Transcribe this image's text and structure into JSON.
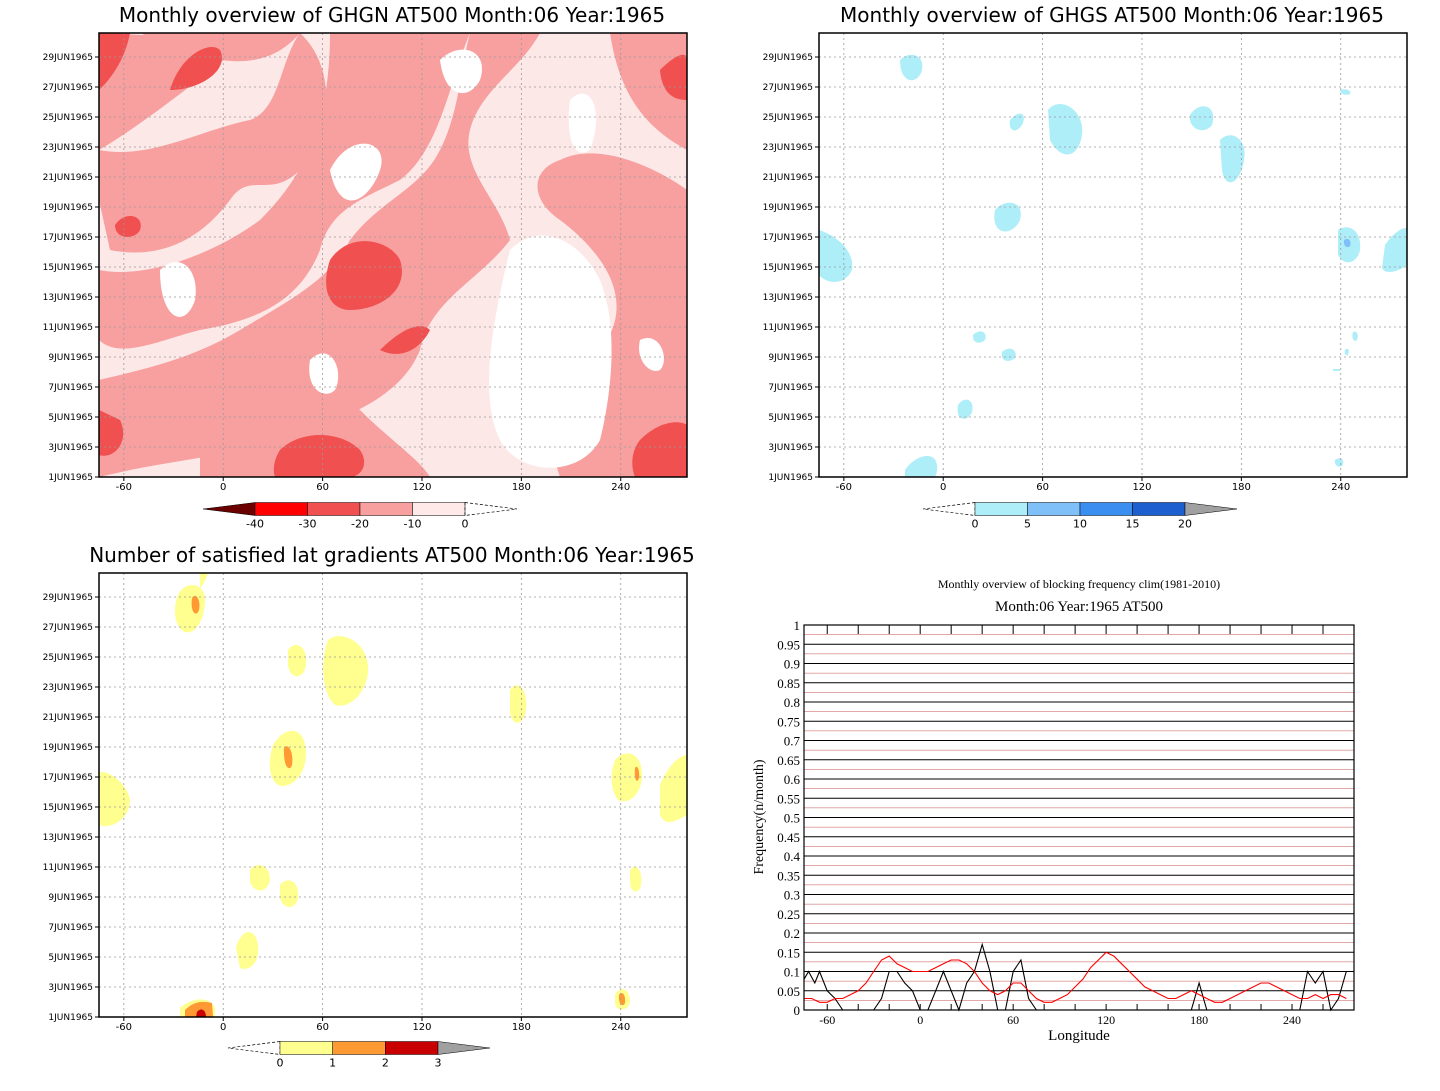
{
  "chart_data": [
    {
      "type": "heatmap",
      "title": "Monthly overview of GHGN AT500 Month:06 Year:1965",
      "x_ticks": [
        "-60",
        "0",
        "60",
        "120",
        "180",
        "240"
      ],
      "x_tick_values": [
        -60,
        0,
        60,
        120,
        180,
        240
      ],
      "xlim": [
        -75,
        280
      ],
      "y_ticks": [
        "1JUN1965",
        "3JUN1965",
        "5JUN1965",
        "7JUN1965",
        "9JUN1965",
        "11JUN1965",
        "13JUN1965",
        "15JUN1965",
        "17JUN1965",
        "19JUN1965",
        "21JUN1965",
        "23JUN1965",
        "25JUN1965",
        "27JUN1965",
        "29JUN1965"
      ],
      "colorbar": {
        "labels": [
          "-40",
          "-30",
          "-20",
          "-10",
          "0"
        ],
        "colors": [
          "#6b0000",
          "#ff0000",
          "#f05050",
          "#f8a0a0",
          "#ffe8e8"
        ]
      },
      "shading_colors": {
        "light": "#fde8e8",
        "mid": "#f8a0a0",
        "strong": "#f05050"
      }
    },
    {
      "type": "heatmap",
      "title": "Monthly overview of GHGS AT500 Month:06 Year:1965",
      "x_ticks": [
        "-60",
        "0",
        "60",
        "120",
        "180",
        "240"
      ],
      "x_tick_values": [
        -60,
        0,
        60,
        120,
        180,
        240
      ],
      "xlim": [
        -75,
        280
      ],
      "y_ticks": [
        "1JUN1965",
        "3JUN1965",
        "5JUN1965",
        "7JUN1965",
        "9JUN1965",
        "11JUN1965",
        "13JUN1965",
        "15JUN1965",
        "17JUN1965",
        "19JUN1965",
        "21JUN1965",
        "23JUN1965",
        "25JUN1965",
        "27JUN1965",
        "29JUN1965"
      ],
      "colorbar": {
        "labels": [
          "0",
          "5",
          "10",
          "15",
          "20"
        ],
        "colors": [
          "#aeeef8",
          "#80c0f8",
          "#3a8ef0",
          "#1e5fd0",
          "#a0a0a0"
        ]
      }
    },
    {
      "type": "heatmap",
      "title": "Number of satisfied lat gradients AT500 Month:06 Year:1965",
      "x_ticks": [
        "-60",
        "0",
        "60",
        "120",
        "180",
        "240"
      ],
      "x_tick_values": [
        -60,
        0,
        60,
        120,
        180,
        240
      ],
      "xlim": [
        -75,
        280
      ],
      "y_ticks": [
        "1JUN1965",
        "3JUN1965",
        "5JUN1965",
        "7JUN1965",
        "9JUN1965",
        "11JUN1965",
        "13JUN1965",
        "15JUN1965",
        "17JUN1965",
        "19JUN1965",
        "21JUN1965",
        "23JUN1965",
        "25JUN1965",
        "27JUN1965",
        "29JUN1965"
      ],
      "colorbar": {
        "labels": [
          "0",
          "1",
          "2",
          "3"
        ],
        "colors": [
          "#ffff90",
          "#ff9933",
          "#c80000",
          "#a0a0a0"
        ]
      }
    },
    {
      "type": "line",
      "title": "Monthly overview of blocking frequency clim(1981-2010)",
      "subtitle": "Month:06 Year:1965  AT500",
      "xlabel": "Longitude",
      "ylabel": "Frequency(n/month)",
      "xlim": [
        -75,
        280
      ],
      "ylim": [
        0,
        1
      ],
      "x_ticks": [
        "-60",
        "0",
        "60",
        "120",
        "180",
        "240"
      ],
      "x_tick_values": [
        -60,
        0,
        60,
        120,
        180,
        240
      ],
      "y_ticks": [
        "0",
        "0.05",
        "0.1",
        "0.15",
        "0.2",
        "0.25",
        "0.3",
        "0.35",
        "0.4",
        "0.45",
        "0.5",
        "0.55",
        "0.6",
        "0.65",
        "0.7",
        "0.75",
        "0.8",
        "0.85",
        "0.9",
        "0.95",
        "1"
      ],
      "series": [
        {
          "color": "#000000",
          "x": [
            -75,
            -72,
            -68,
            -65,
            -60,
            -55,
            -50,
            -45,
            -40,
            -35,
            -30,
            -25,
            -20,
            -15,
            -10,
            -5,
            0,
            5,
            10,
            15,
            20,
            25,
            30,
            35,
            40,
            45,
            50,
            55,
            60,
            65,
            70,
            75,
            80,
            85,
            90,
            95,
            100,
            105,
            110,
            115,
            120,
            125,
            130,
            135,
            140,
            145,
            150,
            155,
            160,
            165,
            170,
            175,
            180,
            185,
            190,
            195,
            200,
            205,
            210,
            215,
            220,
            225,
            230,
            235,
            240,
            245,
            250,
            255,
            260,
            265,
            270,
            275
          ],
          "y": [
            0.08,
            0.1,
            0.07,
            0.1,
            0.05,
            0.03,
            0.0,
            0.0,
            0.0,
            0.0,
            0.0,
            0.03,
            0.1,
            0.1,
            0.07,
            0.05,
            0.0,
            0.0,
            0.05,
            0.1,
            0.05,
            0.0,
            0.07,
            0.1,
            0.17,
            0.1,
            0.0,
            0.0,
            0.1,
            0.13,
            0.03,
            0.0,
            0.0,
            0.0,
            0.0,
            0.0,
            0.0,
            0.0,
            0.0,
            0.0,
            0.0,
            0.0,
            0.0,
            0.0,
            0.0,
            0.0,
            0.0,
            0.0,
            0.0,
            0.0,
            0.0,
            0.0,
            0.07,
            0.0,
            0.0,
            0.0,
            0.0,
            0.0,
            0.0,
            0.0,
            0.0,
            0.0,
            0.0,
            0.0,
            0.0,
            0.0,
            0.1,
            0.07,
            0.1,
            0.0,
            0.03,
            0.1
          ]
        },
        {
          "color": "#ff0000",
          "x": [
            -75,
            -70,
            -65,
            -60,
            -55,
            -50,
            -45,
            -40,
            -35,
            -30,
            -25,
            -20,
            -15,
            -10,
            -5,
            0,
            5,
            10,
            15,
            20,
            25,
            30,
            35,
            40,
            45,
            50,
            55,
            60,
            65,
            70,
            75,
            80,
            85,
            90,
            95,
            100,
            105,
            110,
            115,
            120,
            125,
            130,
            135,
            140,
            145,
            150,
            155,
            160,
            165,
            170,
            175,
            180,
            185,
            190,
            195,
            200,
            205,
            210,
            215,
            220,
            225,
            230,
            235,
            240,
            245,
            250,
            255,
            260,
            265,
            270,
            275
          ],
          "y": [
            0.03,
            0.03,
            0.02,
            0.02,
            0.03,
            0.03,
            0.04,
            0.05,
            0.07,
            0.1,
            0.13,
            0.14,
            0.12,
            0.11,
            0.1,
            0.1,
            0.1,
            0.11,
            0.12,
            0.13,
            0.13,
            0.12,
            0.1,
            0.07,
            0.05,
            0.04,
            0.05,
            0.07,
            0.07,
            0.05,
            0.03,
            0.02,
            0.02,
            0.03,
            0.04,
            0.06,
            0.08,
            0.11,
            0.13,
            0.15,
            0.14,
            0.12,
            0.1,
            0.08,
            0.06,
            0.05,
            0.04,
            0.03,
            0.03,
            0.04,
            0.05,
            0.04,
            0.03,
            0.02,
            0.02,
            0.03,
            0.04,
            0.05,
            0.06,
            0.07,
            0.07,
            0.06,
            0.05,
            0.04,
            0.03,
            0.03,
            0.04,
            0.03,
            0.04,
            0.04,
            0.03
          ]
        }
      ]
    }
  ]
}
